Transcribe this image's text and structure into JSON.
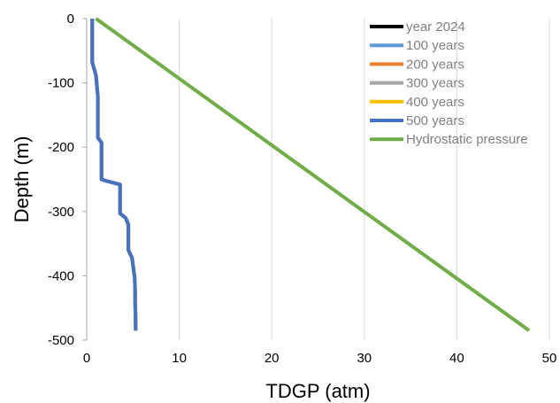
{
  "chart_data": {
    "type": "line",
    "xlabel": "TDGP (atm)",
    "ylabel": "Depth (m)",
    "xlim": [
      0,
      50
    ],
    "ylim": [
      -500,
      0
    ],
    "x_ticks": [
      0,
      10,
      20,
      30,
      40,
      50
    ],
    "y_ticks": [
      0,
      -100,
      -200,
      -300,
      -400,
      -500
    ],
    "grid": "vertical",
    "legend_position": "top-right",
    "series": [
      {
        "name": "year 2024",
        "color": "#000000",
        "points": [
          [
            0.6,
            0
          ],
          [
            0.6,
            -68
          ],
          [
            1.0,
            -88
          ],
          [
            1.2,
            -120
          ],
          [
            1.2,
            -185
          ],
          [
            1.6,
            -193
          ],
          [
            1.6,
            -250
          ],
          [
            2.0,
            -252
          ],
          [
            3.6,
            -258
          ],
          [
            3.6,
            -303
          ],
          [
            4.2,
            -310
          ],
          [
            4.5,
            -320
          ],
          [
            4.5,
            -360
          ],
          [
            4.9,
            -372
          ],
          [
            5.2,
            -405
          ],
          [
            5.3,
            -485
          ]
        ]
      },
      {
        "name": "100 years",
        "color": "#5b9bd5",
        "points": [
          [
            0.6,
            0
          ],
          [
            0.6,
            -68
          ],
          [
            1.0,
            -88
          ],
          [
            1.2,
            -120
          ],
          [
            1.2,
            -185
          ],
          [
            1.6,
            -193
          ],
          [
            1.6,
            -250
          ],
          [
            2.0,
            -252
          ],
          [
            3.6,
            -258
          ],
          [
            3.6,
            -303
          ],
          [
            4.2,
            -310
          ],
          [
            4.5,
            -320
          ],
          [
            4.5,
            -360
          ],
          [
            4.9,
            -372
          ],
          [
            5.2,
            -405
          ],
          [
            5.3,
            -485
          ]
        ]
      },
      {
        "name": "200 years",
        "color": "#ed7d31",
        "points": [
          [
            0.6,
            0
          ],
          [
            0.6,
            -68
          ],
          [
            1.0,
            -88
          ],
          [
            1.2,
            -120
          ],
          [
            1.2,
            -185
          ],
          [
            1.6,
            -193
          ],
          [
            1.6,
            -250
          ],
          [
            2.0,
            -252
          ],
          [
            3.6,
            -258
          ],
          [
            3.6,
            -303
          ],
          [
            4.2,
            -310
          ],
          [
            4.5,
            -320
          ],
          [
            4.5,
            -360
          ],
          [
            4.9,
            -372
          ],
          [
            5.2,
            -405
          ],
          [
            5.3,
            -485
          ]
        ]
      },
      {
        "name": "300 years",
        "color": "#a5a5a5",
        "points": [
          [
            0.6,
            0
          ],
          [
            0.6,
            -68
          ],
          [
            1.0,
            -88
          ],
          [
            1.2,
            -120
          ],
          [
            1.2,
            -185
          ],
          [
            1.6,
            -193
          ],
          [
            1.6,
            -250
          ],
          [
            2.0,
            -252
          ],
          [
            3.6,
            -258
          ],
          [
            3.6,
            -303
          ],
          [
            4.2,
            -310
          ],
          [
            4.5,
            -320
          ],
          [
            4.5,
            -360
          ],
          [
            4.9,
            -372
          ],
          [
            5.2,
            -405
          ],
          [
            5.3,
            -485
          ]
        ]
      },
      {
        "name": "400 years",
        "color": "#ffc000",
        "points": [
          [
            0.6,
            0
          ],
          [
            0.6,
            -68
          ],
          [
            1.0,
            -88
          ],
          [
            1.2,
            -120
          ],
          [
            1.2,
            -185
          ],
          [
            1.6,
            -193
          ],
          [
            1.6,
            -250
          ],
          [
            2.0,
            -252
          ],
          [
            3.6,
            -258
          ],
          [
            3.6,
            -303
          ],
          [
            4.2,
            -310
          ],
          [
            4.5,
            -320
          ],
          [
            4.5,
            -360
          ],
          [
            4.9,
            -372
          ],
          [
            5.2,
            -405
          ],
          [
            5.3,
            -485
          ]
        ]
      },
      {
        "name": "500 years",
        "color": "#4472c4",
        "points": [
          [
            0.6,
            0
          ],
          [
            0.6,
            -68
          ],
          [
            1.0,
            -88
          ],
          [
            1.2,
            -120
          ],
          [
            1.2,
            -185
          ],
          [
            1.6,
            -193
          ],
          [
            1.6,
            -250
          ],
          [
            2.0,
            -252
          ],
          [
            3.6,
            -258
          ],
          [
            3.6,
            -303
          ],
          [
            4.2,
            -310
          ],
          [
            4.5,
            -320
          ],
          [
            4.5,
            -360
          ],
          [
            4.9,
            -372
          ],
          [
            5.2,
            -405
          ],
          [
            5.3,
            -485
          ]
        ]
      },
      {
        "name": "Hydrostatic pressure",
        "color": "#70ad47",
        "points": [
          [
            1.0,
            0
          ],
          [
            47.8,
            -485
          ]
        ]
      }
    ]
  }
}
